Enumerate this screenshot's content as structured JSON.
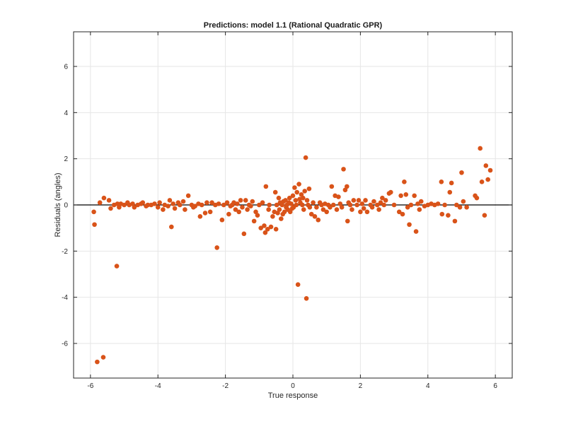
{
  "chart_data": {
    "type": "scatter",
    "title": "Predictions: model 1.1 (Rational Quadratic GPR)",
    "xlabel": "True response",
    "ylabel": "Residuals (angles)",
    "xlim": [
      -6.5,
      6.5
    ],
    "ylim": [
      -7.5,
      7.5
    ],
    "xticks": [
      -6,
      -4,
      -2,
      0,
      2,
      4,
      6
    ],
    "yticks": [
      -6,
      -4,
      -2,
      0,
      2,
      4,
      6
    ],
    "grid": true,
    "reference_line_y": 0,
    "marker_color": "#d95319",
    "points": [
      [
        -5.9,
        -0.3
      ],
      [
        -5.88,
        -0.85
      ],
      [
        -5.8,
        -6.8
      ],
      [
        -5.72,
        0.1
      ],
      [
        -5.62,
        -6.6
      ],
      [
        -5.6,
        0.3
      ],
      [
        -5.45,
        0.2
      ],
      [
        -5.4,
        -0.15
      ],
      [
        -5.3,
        0.0
      ],
      [
        -5.22,
        -2.65
      ],
      [
        -5.2,
        0.05
      ],
      [
        -5.15,
        -0.1
      ],
      [
        -5.1,
        0.05
      ],
      [
        -5.0,
        0.0
      ],
      [
        -4.9,
        0.1
      ],
      [
        -4.85,
        0.0
      ],
      [
        -4.75,
        0.05
      ],
      [
        -4.7,
        -0.1
      ],
      [
        -4.6,
        0.0
      ],
      [
        -4.5,
        0.05
      ],
      [
        -4.45,
        0.1
      ],
      [
        -4.35,
        -0.05
      ],
      [
        -4.3,
        0.0
      ],
      [
        -4.2,
        0.0
      ],
      [
        -4.1,
        0.05
      ],
      [
        -4.0,
        -0.1
      ],
      [
        -3.95,
        0.1
      ],
      [
        -3.85,
        -0.2
      ],
      [
        -3.8,
        0.0
      ],
      [
        -3.7,
        -0.05
      ],
      [
        -3.65,
        0.2
      ],
      [
        -3.6,
        -0.95
      ],
      [
        -3.55,
        0.05
      ],
      [
        -3.5,
        -0.15
      ],
      [
        -3.4,
        0.1
      ],
      [
        -3.35,
        0.0
      ],
      [
        -3.25,
        0.15
      ],
      [
        -3.2,
        -0.2
      ],
      [
        -3.1,
        0.4
      ],
      [
        -3.0,
        0.0
      ],
      [
        -2.95,
        -0.1
      ],
      [
        -2.9,
        -0.05
      ],
      [
        -2.8,
        0.05
      ],
      [
        -2.75,
        -0.5
      ],
      [
        -2.7,
        0.0
      ],
      [
        -2.6,
        -0.35
      ],
      [
        -2.55,
        0.1
      ],
      [
        -2.45,
        -0.3
      ],
      [
        -2.4,
        0.1
      ],
      [
        -2.3,
        0.0
      ],
      [
        -2.25,
        -1.85
      ],
      [
        -2.2,
        0.05
      ],
      [
        -2.1,
        -0.65
      ],
      [
        -2.05,
        0.0
      ],
      [
        -1.95,
        0.1
      ],
      [
        -1.9,
        -0.4
      ],
      [
        -1.85,
        -0.05
      ],
      [
        -1.8,
        0.0
      ],
      [
        -1.75,
        0.1
      ],
      [
        -1.7,
        -0.2
      ],
      [
        -1.65,
        0.05
      ],
      [
        -1.6,
        -0.3
      ],
      [
        -1.55,
        0.2
      ],
      [
        -1.5,
        -0.1
      ],
      [
        -1.45,
        -1.25
      ],
      [
        -1.4,
        0.2
      ],
      [
        -1.35,
        -0.2
      ],
      [
        -1.3,
        0.0
      ],
      [
        -1.25,
        -0.05
      ],
      [
        -1.2,
        0.15
      ],
      [
        -1.15,
        -0.7
      ],
      [
        -1.1,
        -0.3
      ],
      [
        -1.05,
        -0.45
      ],
      [
        -1.0,
        0.0
      ],
      [
        -0.95,
        -1.0
      ],
      [
        -0.9,
        0.1
      ],
      [
        -0.85,
        -0.9
      ],
      [
        -0.82,
        -1.2
      ],
      [
        -0.8,
        0.8
      ],
      [
        -0.75,
        -1.05
      ],
      [
        -0.72,
        -0.2
      ],
      [
        -0.7,
        0.0
      ],
      [
        -0.65,
        -0.95
      ],
      [
        -0.6,
        -0.5
      ],
      [
        -0.55,
        -0.3
      ],
      [
        -0.52,
        0.55
      ],
      [
        -0.5,
        -1.05
      ],
      [
        -0.48,
        0.0
      ],
      [
        -0.45,
        -0.35
      ],
      [
        -0.42,
        0.3
      ],
      [
        -0.4,
        -0.2
      ],
      [
        -0.38,
        0.1
      ],
      [
        -0.35,
        -0.6
      ],
      [
        -0.32,
        0.0
      ],
      [
        -0.3,
        -0.4
      ],
      [
        -0.28,
        0.15
      ],
      [
        -0.25,
        -0.3
      ],
      [
        -0.22,
        0.2
      ],
      [
        -0.2,
        -0.1
      ],
      [
        -0.18,
        0.0
      ],
      [
        -0.15,
        -0.2
      ],
      [
        -0.12,
        0.1
      ],
      [
        -0.1,
        0.3
      ],
      [
        -0.08,
        -0.3
      ],
      [
        -0.05,
        0.05
      ],
      [
        -0.02,
        -0.15
      ],
      [
        0.0,
        0.4
      ],
      [
        0.02,
        -0.1
      ],
      [
        0.05,
        0.75
      ],
      [
        0.08,
        0.2
      ],
      [
        0.1,
        0.0
      ],
      [
        0.12,
        0.55
      ],
      [
        0.15,
        -3.45
      ],
      [
        0.18,
        0.9
      ],
      [
        0.2,
        0.25
      ],
      [
        0.22,
        0.1
      ],
      [
        0.25,
        0.45
      ],
      [
        0.28,
        0.0
      ],
      [
        0.3,
        0.3
      ],
      [
        0.32,
        -0.2
      ],
      [
        0.35,
        0.6
      ],
      [
        0.38,
        2.05
      ],
      [
        0.4,
        -4.05
      ],
      [
        0.42,
        0.2
      ],
      [
        0.45,
        0.0
      ],
      [
        0.48,
        0.7
      ],
      [
        0.5,
        -0.1
      ],
      [
        0.55,
        -0.4
      ],
      [
        0.6,
        0.1
      ],
      [
        0.65,
        -0.5
      ],
      [
        0.7,
        -0.1
      ],
      [
        0.75,
        -0.65
      ],
      [
        0.8,
        0.1
      ],
      [
        0.85,
        0.0
      ],
      [
        0.9,
        -0.2
      ],
      [
        0.95,
        0.05
      ],
      [
        1.0,
        -0.3
      ],
      [
        1.05,
        0.0
      ],
      [
        1.1,
        -0.1
      ],
      [
        1.15,
        0.8
      ],
      [
        1.2,
        0.0
      ],
      [
        1.25,
        0.4
      ],
      [
        1.3,
        -0.2
      ],
      [
        1.35,
        0.35
      ],
      [
        1.4,
        0.05
      ],
      [
        1.45,
        -0.1
      ],
      [
        1.5,
        1.55
      ],
      [
        1.55,
        0.65
      ],
      [
        1.6,
        0.8
      ],
      [
        1.62,
        -0.7
      ],
      [
        1.65,
        0.1
      ],
      [
        1.7,
        0.0
      ],
      [
        1.75,
        -0.2
      ],
      [
        1.8,
        0.2
      ],
      [
        1.9,
        0.0
      ],
      [
        1.95,
        0.2
      ],
      [
        2.0,
        -0.3
      ],
      [
        2.05,
        0.05
      ],
      [
        2.1,
        -0.15
      ],
      [
        2.15,
        0.2
      ],
      [
        2.2,
        -0.3
      ],
      [
        2.3,
        0.0
      ],
      [
        2.35,
        -0.1
      ],
      [
        2.4,
        0.15
      ],
      [
        2.5,
        0.0
      ],
      [
        2.55,
        -0.2
      ],
      [
        2.6,
        0.1
      ],
      [
        2.65,
        0.3
      ],
      [
        2.7,
        0.0
      ],
      [
        2.75,
        0.2
      ],
      [
        2.85,
        0.5
      ],
      [
        2.9,
        0.55
      ],
      [
        3.0,
        0.0
      ],
      [
        3.15,
        -0.3
      ],
      [
        3.2,
        0.4
      ],
      [
        3.25,
        -0.4
      ],
      [
        3.3,
        1.0
      ],
      [
        3.35,
        0.45
      ],
      [
        3.4,
        -0.1
      ],
      [
        3.45,
        -0.85
      ],
      [
        3.5,
        0.0
      ],
      [
        3.6,
        0.4
      ],
      [
        3.65,
        -1.15
      ],
      [
        3.7,
        0.05
      ],
      [
        3.75,
        -0.2
      ],
      [
        3.8,
        0.15
      ],
      [
        3.9,
        -0.05
      ],
      [
        4.0,
        0.0
      ],
      [
        4.1,
        0.05
      ],
      [
        4.2,
        0.0
      ],
      [
        4.3,
        0.05
      ],
      [
        4.4,
        1.0
      ],
      [
        4.42,
        -0.4
      ],
      [
        4.5,
        0.0
      ],
      [
        4.6,
        -0.45
      ],
      [
        4.65,
        0.55
      ],
      [
        4.7,
        0.95
      ],
      [
        4.8,
        -0.7
      ],
      [
        4.85,
        0.0
      ],
      [
        4.95,
        -0.1
      ],
      [
        5.0,
        1.4
      ],
      [
        5.05,
        0.15
      ],
      [
        5.15,
        -0.1
      ],
      [
        5.4,
        0.4
      ],
      [
        5.45,
        0.3
      ],
      [
        5.55,
        2.45
      ],
      [
        5.6,
        1.0
      ],
      [
        5.68,
        -0.45
      ],
      [
        5.72,
        1.7
      ],
      [
        5.78,
        1.1
      ],
      [
        5.85,
        1.5
      ]
    ]
  }
}
